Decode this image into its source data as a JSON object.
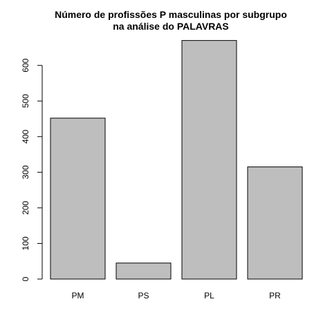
{
  "chart_data": {
    "type": "bar",
    "title_lines": [
      "Número de profissões P masculinas por subgrupo",
      "na análise do PALAVRAS"
    ],
    "categories": [
      "PM",
      "PS",
      "PL",
      "PR"
    ],
    "values": [
      452,
      45,
      670,
      315
    ],
    "xlabel": "",
    "ylabel": "",
    "ylim": [
      0,
      670
    ],
    "yticks": [
      0,
      100,
      200,
      300,
      400,
      500,
      600
    ],
    "bar_color": "#bebebe",
    "grid": false,
    "legend": "none"
  }
}
